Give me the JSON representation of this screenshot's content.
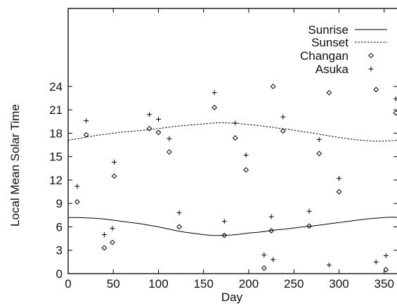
{
  "chart_data": {
    "type": "scatter",
    "title": "",
    "xlabel": "Day",
    "ylabel": "Local Mean Solar Time",
    "xlim": [
      0,
      365
    ],
    "ylim": [
      0,
      34
    ],
    "x_ticks": [
      0,
      50,
      100,
      150,
      200,
      250,
      300,
      350
    ],
    "y_ticks": [
      0,
      3,
      6,
      9,
      12,
      15,
      18,
      21,
      24
    ],
    "grid": false,
    "legend_position": "top-right",
    "series": [
      {
        "name": "Sunrise",
        "type": "line",
        "style": "solid",
        "x": [
          0,
          10,
          20,
          30,
          40,
          50,
          60,
          70,
          80,
          90,
          100,
          110,
          120,
          130,
          140,
          150,
          160,
          170,
          180,
          190,
          200,
          210,
          220,
          230,
          240,
          250,
          260,
          270,
          280,
          290,
          300,
          310,
          320,
          330,
          340,
          350,
          360,
          365
        ],
        "y": [
          7.2,
          7.2,
          7.15,
          7.1,
          7.0,
          6.85,
          6.7,
          6.55,
          6.4,
          6.2,
          6.0,
          5.75,
          5.5,
          5.3,
          5.15,
          5.0,
          4.9,
          4.9,
          4.95,
          5.05,
          5.2,
          5.3,
          5.45,
          5.6,
          5.7,
          5.85,
          6.0,
          6.1,
          6.25,
          6.4,
          6.55,
          6.7,
          6.85,
          7.0,
          7.1,
          7.2,
          7.25,
          7.2
        ]
      },
      {
        "name": "Sunset",
        "type": "line",
        "style": "dashed",
        "x": [
          0,
          10,
          20,
          30,
          40,
          50,
          60,
          70,
          80,
          90,
          100,
          110,
          120,
          130,
          140,
          150,
          160,
          170,
          180,
          190,
          200,
          210,
          220,
          230,
          240,
          250,
          260,
          270,
          280,
          290,
          300,
          310,
          320,
          330,
          340,
          350,
          360,
          365
        ],
        "y": [
          17.1,
          17.3,
          17.5,
          17.7,
          17.85,
          18.0,
          18.15,
          18.25,
          18.35,
          18.45,
          18.6,
          18.75,
          18.9,
          19.0,
          19.1,
          19.2,
          19.3,
          19.35,
          19.3,
          19.25,
          19.1,
          19.0,
          18.85,
          18.7,
          18.55,
          18.4,
          18.2,
          18.05,
          17.85,
          17.65,
          17.45,
          17.3,
          17.15,
          17.05,
          17.0,
          17.0,
          17.05,
          17.1
        ]
      },
      {
        "name": "Changan",
        "type": "points",
        "marker": "diamond",
        "x": [
          10,
          20,
          40,
          49,
          51,
          90,
          100,
          112,
          123,
          162,
          173,
          185,
          197,
          217,
          225,
          227,
          238,
          267,
          278,
          289,
          300,
          341,
          352,
          363
        ],
        "y": [
          9.2,
          17.8,
          3.3,
          4.0,
          12.5,
          18.6,
          18.1,
          15.6,
          6.0,
          21.3,
          4.9,
          17.4,
          13.3,
          0.7,
          5.5,
          24.0,
          18.3,
          6.1,
          15.4,
          23.2,
          10.5,
          23.6,
          0.5,
          20.6
        ]
      },
      {
        "name": "Asuka",
        "type": "points",
        "marker": "plus",
        "x": [
          10,
          20,
          40,
          49,
          51,
          90,
          100,
          112,
          123,
          162,
          173,
          185,
          197,
          217,
          225,
          227,
          238,
          267,
          278,
          289,
          300,
          341,
          352,
          363
        ],
        "y": [
          11.2,
          19.6,
          5.0,
          5.8,
          14.3,
          20.4,
          19.8,
          17.3,
          7.8,
          23.2,
          6.7,
          19.3,
          15.2,
          2.4,
          7.3,
          1.8,
          20.1,
          8.0,
          17.2,
          1.1,
          12.2,
          1.5,
          2.3,
          22.4
        ]
      }
    ]
  }
}
